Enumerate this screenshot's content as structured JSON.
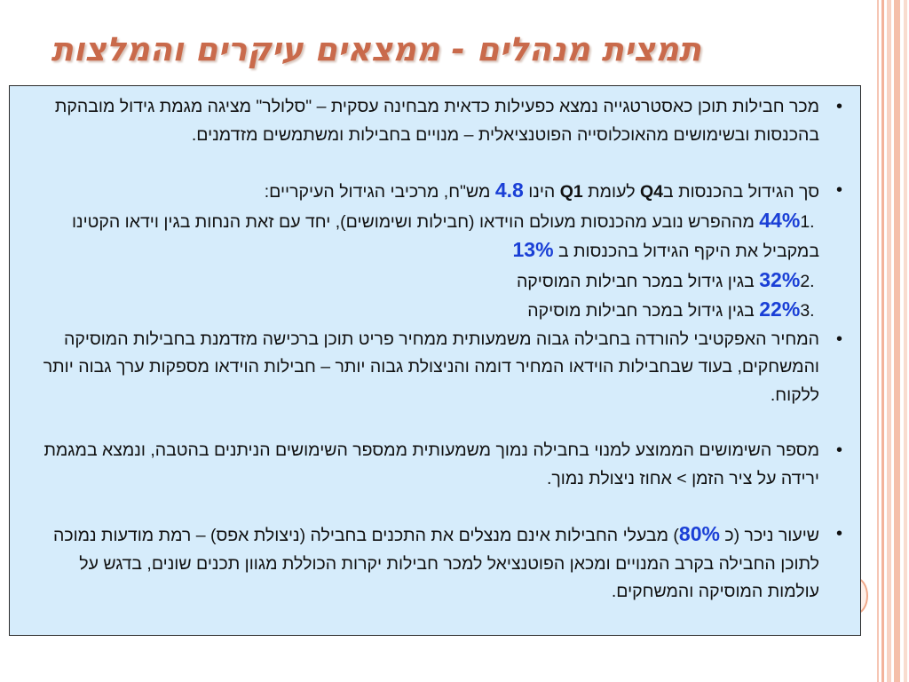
{
  "slide": {
    "title": "תמצית מנהלים - ממצאים עיקרים והמלצות"
  },
  "bullets": {
    "b1": {
      "text": "מכר חבילות תוכן כאסטרטגייה נמצא כפעילות כדאית מבחינה עסקית – \"סלולר\" מציגה מגמת גידול מובהקת בהכנסות ובשימושים מהאוכלוסייה הפוטנציאלית – מנויים בחבילות ומשתמשים מזדמנים."
    },
    "b2": {
      "p1": "סך הגידול בהכנסות ב",
      "q4": "Q4",
      "p2": " לעומת ",
      "q1": "Q1",
      "p3": " הינו ",
      "amount": "4.8",
      "p4": " מש\"ח, מרכיבי הגידול העיקריים:",
      "i1_num": "1. ",
      "i1_pct": "44%",
      "i1_text": " מההפרש נובע מהכנסות מעולם הוידאו (חבילות ושימושים), יחד עם זאת הנחות בגין וידאו הקטינו במקביל את היקף הגידול בהכנסות ב ",
      "i1_pct2": "13%",
      "i2_num": "2. ",
      "i2_pct": "32%",
      "i2_text": " בגין גידול במכר חבילות המוסיקה",
      "i3_num": "3. ",
      "i3_pct": "22%",
      "i3_text": " בגין גידול במכר חבילות מוסיקה"
    },
    "b3": {
      "text": "המחיר האפקטיבי להורדה בחבילה גבוה משמעותית ממחיר פריט תוכן ברכישה מזדמנת בחבילות המוסיקה והמשחקים, בעוד שבחבילות הוידאו המחיר דומה והניצולת גבוה יותר – חבילות הוידאו מספקות ערך גבוה יותר ללקוח."
    },
    "b4": {
      "text": "מספר השימושים הממוצע למנוי בחבילה נמוך משמעותית ממספר השימושים הניתנים בהטבה, ונמצא במגמת ירידה על ציר הזמן > אחוז ניצולת נמוך."
    },
    "b5": {
      "p1": "שיעור ניכר (כ ",
      "pct": "80%",
      "p2": ") מבעלי החבילות אינם מנצלים את התכנים בחבילה (ניצולת אפס) – רמת מודעות נמוכה לתוכן החבילה בקרב המנויים ומכאן הפוטנציאל למכר חבילות יקרות הכוללת מגוון תכנים שונים, בדגש על עולמות המוסיקה והמשחקים."
    }
  }
}
